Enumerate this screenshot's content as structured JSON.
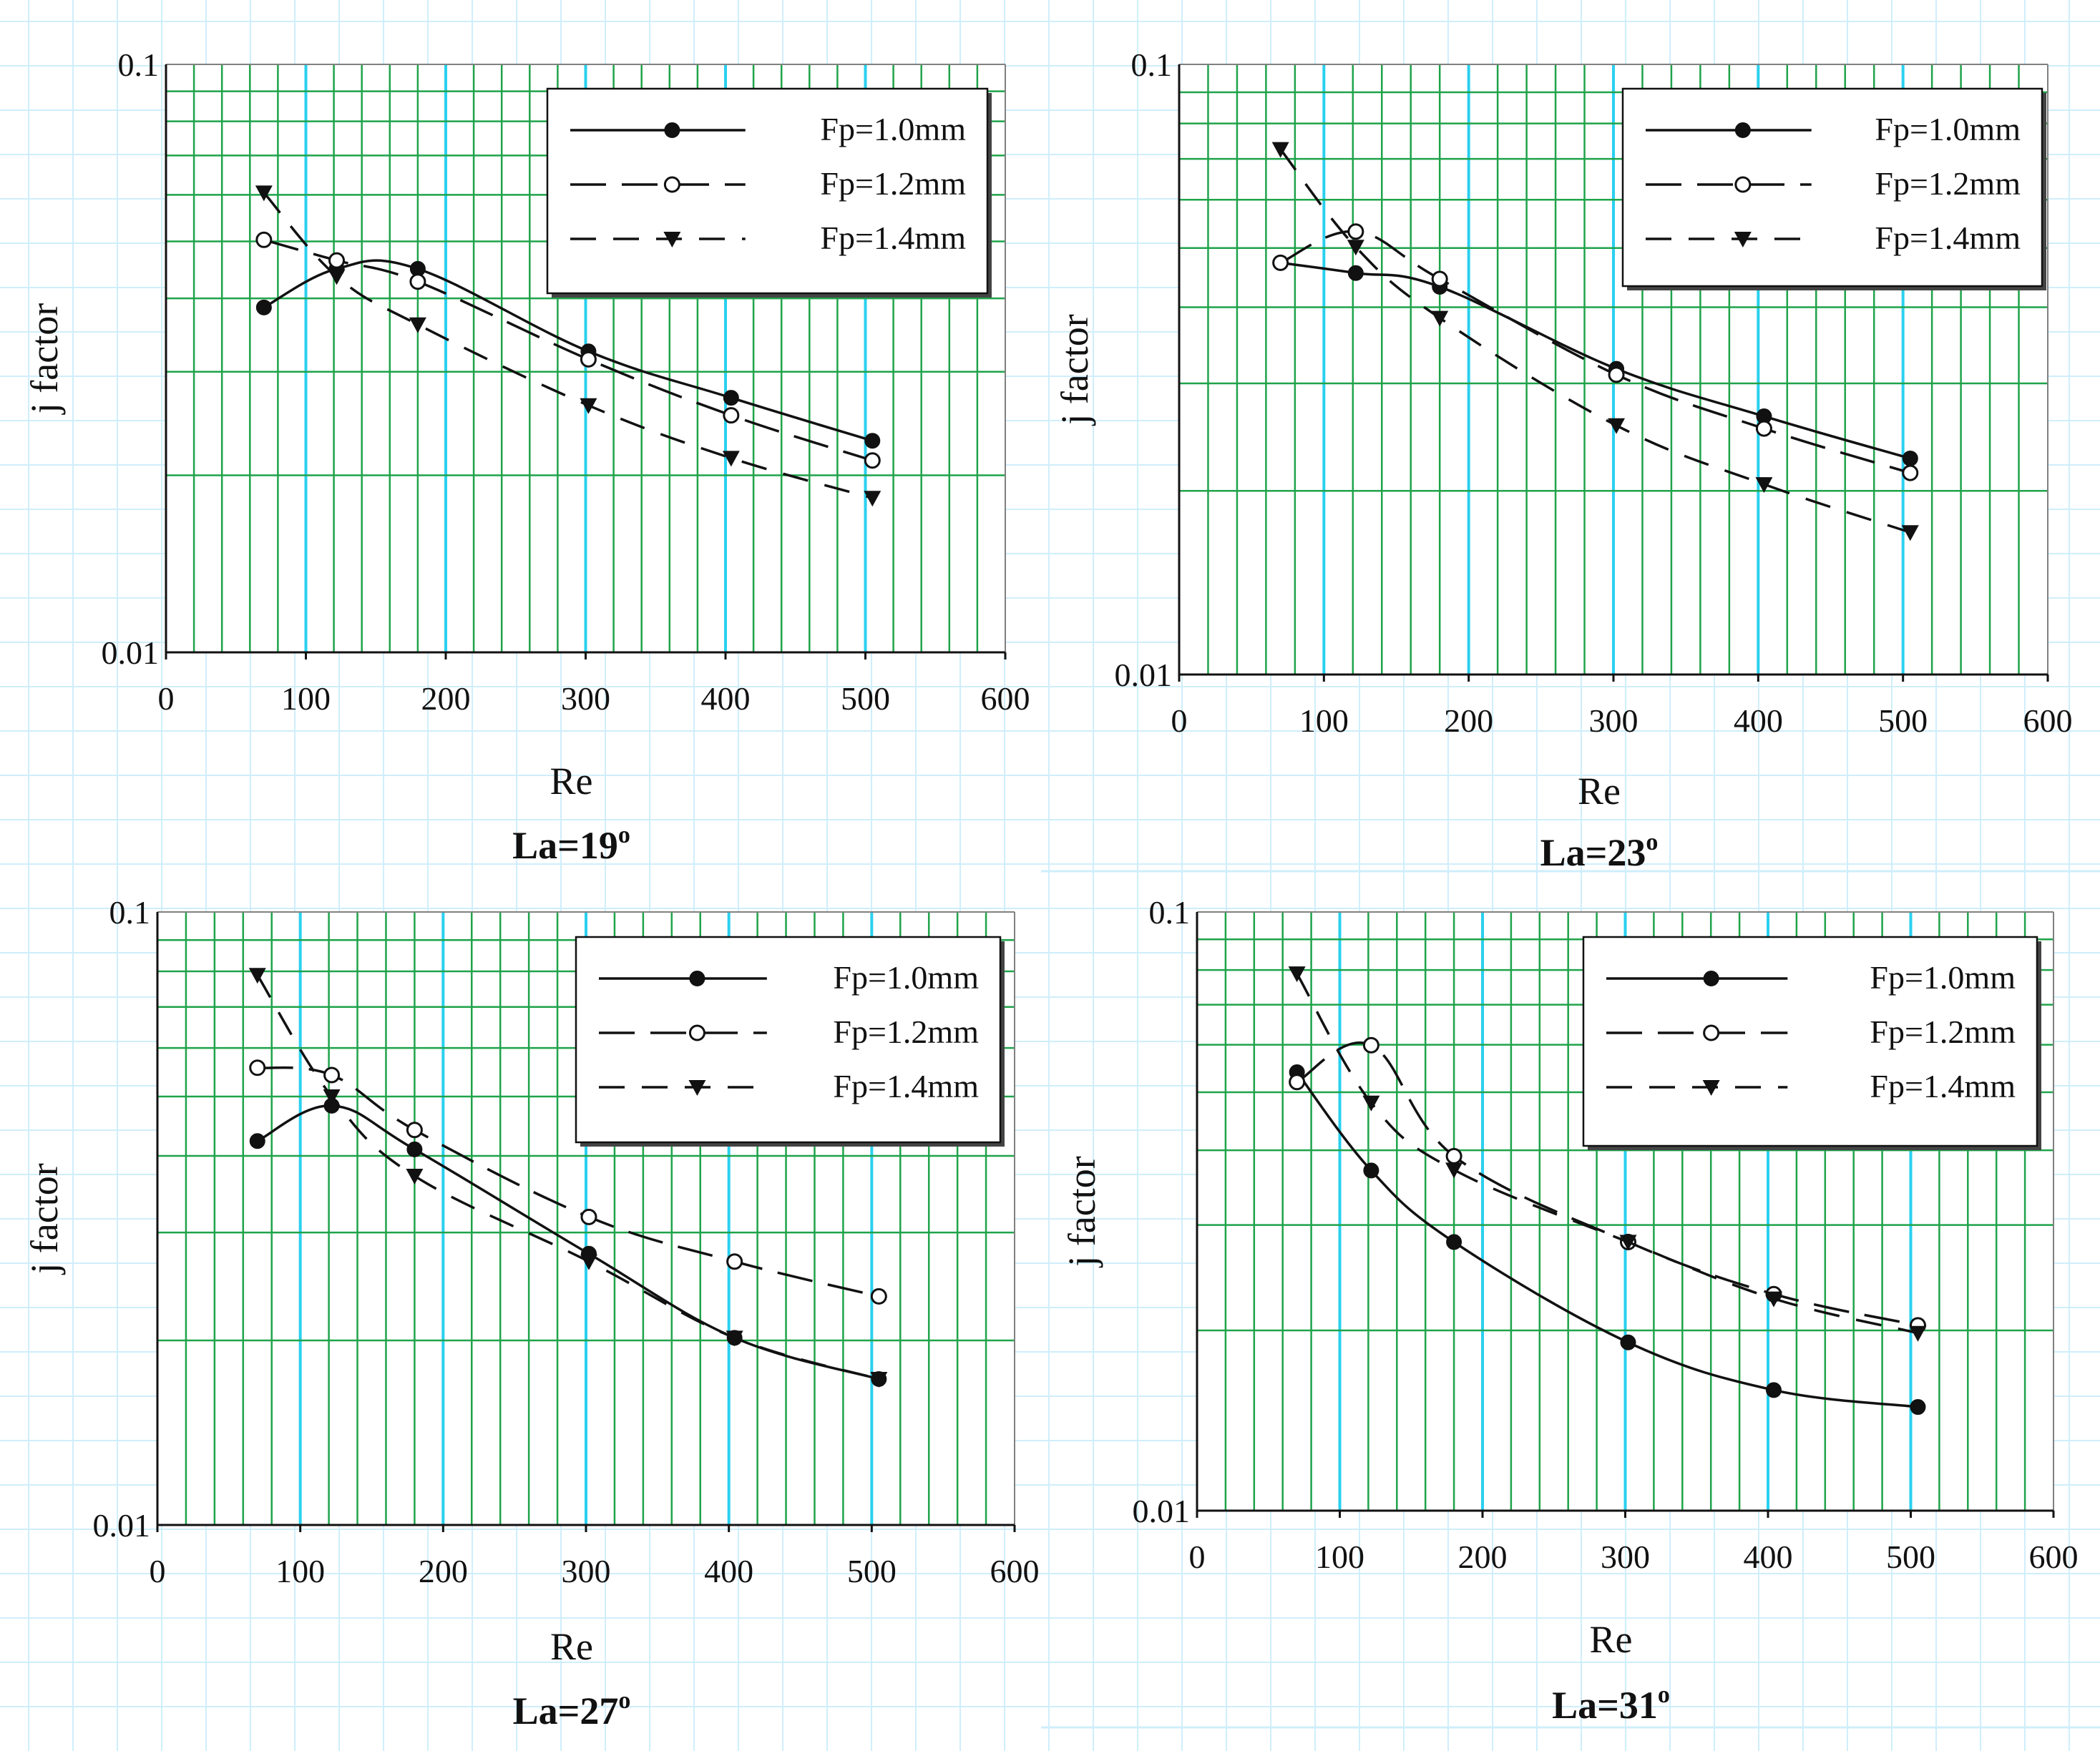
{
  "chart_data": [
    {
      "type": "line",
      "title": "La=19o",
      "caption_main": "La=19",
      "caption_sup": "o",
      "xlabel": "Re",
      "ylabel": "j factor",
      "xlim": [
        0,
        600
      ],
      "ylim": [
        0.01,
        0.1
      ],
      "yscale": "log",
      "xticks": [
        "0",
        "100",
        "200",
        "300",
        "400",
        "500",
        "600"
      ],
      "yticks": [
        "0.1",
        "0.01"
      ],
      "x": [
        70,
        122,
        180,
        302,
        404,
        505
      ],
      "series": [
        {
          "name": "Fp=1.0mm",
          "values": [
            0.0386,
            0.0449,
            0.0449,
            0.0325,
            0.0271,
            0.0229
          ]
        },
        {
          "name": "Fp=1.2mm",
          "values": [
            0.0503,
            0.0464,
            0.0427,
            0.0315,
            0.0253,
            0.0212
          ]
        },
        {
          "name": "Fp=1.4mm",
          "values": [
            0.0605,
            0.0436,
            0.0361,
            0.0263,
            0.0214,
            0.0183
          ]
        }
      ]
    },
    {
      "type": "line",
      "title": "La=23o",
      "caption_main": "La=23",
      "caption_sup": "o",
      "xlabel": "Re",
      "ylabel": "j factor",
      "xlim": [
        0,
        600
      ],
      "ylim": [
        0.01,
        0.1
      ],
      "yscale": "log",
      "xticks": [
        "0",
        "100",
        "200",
        "300",
        "400",
        "500",
        "600"
      ],
      "yticks": [
        "0.1",
        "0.01"
      ],
      "x": [
        70,
        122,
        180,
        302,
        404,
        505
      ],
      "series": [
        {
          "name": "Fp=1.0mm",
          "values": [
            0.0473,
            0.0455,
            0.0432,
            0.0317,
            0.0265,
            0.0226
          ]
        },
        {
          "name": "Fp=1.2mm",
          "values": [
            0.0473,
            0.0532,
            0.0445,
            0.031,
            0.0253,
            0.0214
          ]
        },
        {
          "name": "Fp=1.4mm",
          "values": [
            0.0726,
            0.0502,
            0.0384,
            0.0256,
            0.0205,
            0.0171
          ]
        }
      ]
    },
    {
      "type": "line",
      "title": "La=27o",
      "caption_main": "La=27",
      "caption_sup": "o",
      "xlabel": "Re",
      "ylabel": "j factor",
      "xlim": [
        0,
        600
      ],
      "ylim": [
        0.01,
        0.1
      ],
      "yscale": "log",
      "xticks": [
        "0",
        "100",
        "200",
        "300",
        "400",
        "500",
        "600"
      ],
      "yticks": [
        "0.1",
        "0.01"
      ],
      "x": [
        70,
        122,
        180,
        302,
        404,
        505
      ],
      "series": [
        {
          "name": "Fp=1.0mm",
          "values": [
            0.0423,
            0.0483,
            0.041,
            0.0277,
            0.0202,
            0.0173
          ]
        },
        {
          "name": "Fp=1.2mm",
          "values": [
            0.0557,
            0.0542,
            0.0441,
            0.0318,
            0.0269,
            0.0236
          ]
        },
        {
          "name": "Fp=1.4mm",
          "values": [
            0.0789,
            0.05,
            0.0371,
            0.0269,
            0.0202,
            0.0173
          ]
        }
      ]
    },
    {
      "type": "line",
      "title": "La=31o",
      "caption_main": "La=31",
      "caption_sup": "o",
      "xlabel": "Re",
      "ylabel": "j factor",
      "xlim": [
        0,
        600
      ],
      "ylim": [
        0.01,
        0.1
      ],
      "yscale": "log",
      "xticks": [
        "0",
        "100",
        "200",
        "300",
        "400",
        "500",
        "600"
      ],
      "yticks": [
        "0.1",
        "0.01"
      ],
      "x": [
        70,
        122,
        180,
        302,
        404,
        505
      ],
      "series": [
        {
          "name": "Fp=1.0mm",
          "values": [
            0.054,
            0.037,
            0.0281,
            0.0191,
            0.0159,
            0.0149
          ]
        },
        {
          "name": "Fp=1.2mm",
          "values": [
            0.052,
            0.0599,
            0.0391,
            0.0281,
            0.023,
            0.0204
          ]
        },
        {
          "name": "Fp=1.4mm",
          "values": [
            0.0789,
            0.048,
            0.0371,
            0.0281,
            0.0226,
            0.0198
          ]
        }
      ]
    }
  ]
}
